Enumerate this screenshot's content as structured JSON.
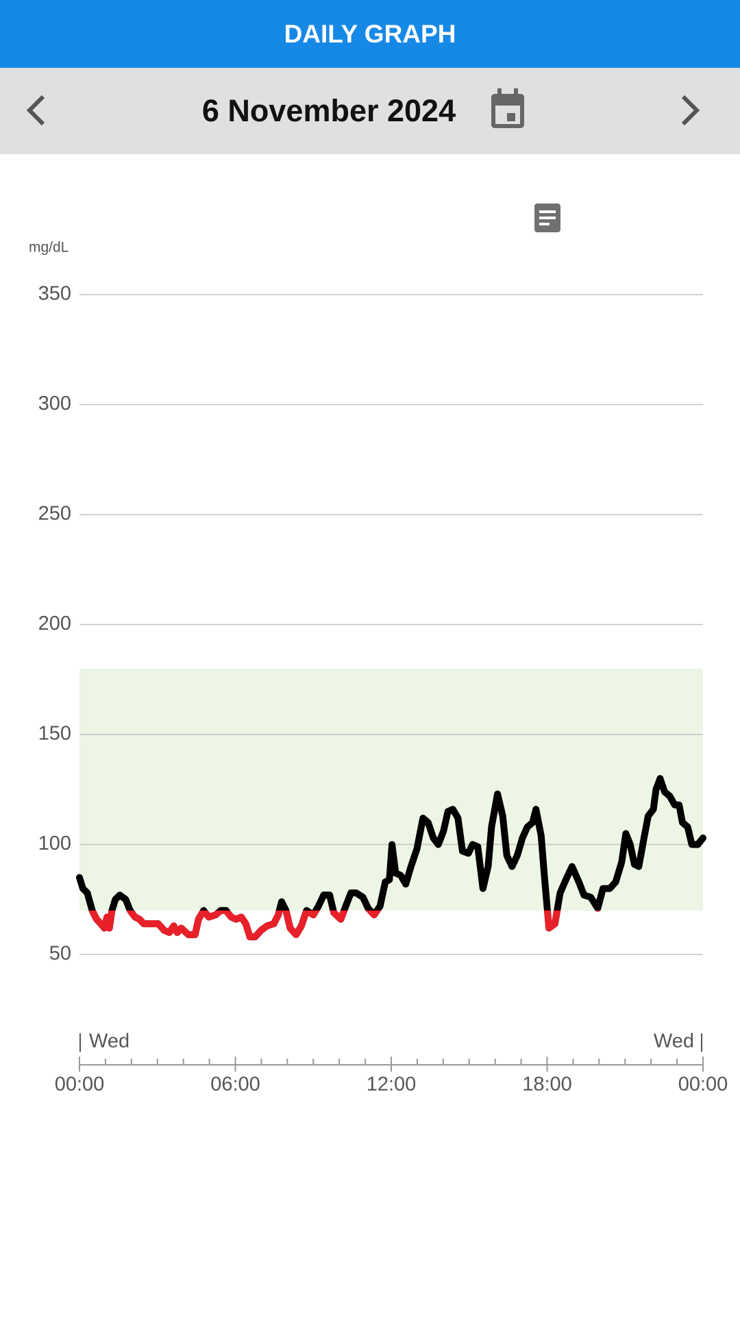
{
  "header": {
    "title": "DAILY GRAPH"
  },
  "date_bar": {
    "date": "6 November 2024"
  },
  "chart_data": {
    "type": "line",
    "y_unit": "mg/dL",
    "day_labels": [
      "Wed",
      "Wed"
    ],
    "x": [
      0,
      0.13,
      0.3,
      0.49,
      0.66,
      0.82,
      0.96,
      1.06,
      1.15,
      1.25,
      1.38,
      1.55,
      1.78,
      1.95,
      2.14,
      2.31,
      2.47,
      2.7,
      3.03,
      3.26,
      3.46,
      3.63,
      3.76,
      3.92,
      4.19,
      4.45,
      4.58,
      4.78,
      4.98,
      5.24,
      5.44,
      5.64,
      5.84,
      6.03,
      6.23,
      6.4,
      6.56,
      6.76,
      6.99,
      7.22,
      7.48,
      7.65,
      7.78,
      7.95,
      8.11,
      8.34,
      8.54,
      8.74,
      9.0,
      9.2,
      9.4,
      9.63,
      9.79,
      10.06,
      10.25,
      10.45,
      10.65,
      10.91,
      11.11,
      11.34,
      11.57,
      11.77,
      11.93,
      12.03,
      12.17,
      12.36,
      12.56,
      12.76,
      12.99,
      13.22,
      13.42,
      13.62,
      13.81,
      14.01,
      14.18,
      14.37,
      14.57,
      14.74,
      14.97,
      15.13,
      15.33,
      15.53,
      15.73,
      15.86,
      16.09,
      16.29,
      16.45,
      16.65,
      16.85,
      17.05,
      17.24,
      17.44,
      17.57,
      17.77,
      17.9,
      18.07,
      18.3,
      18.5,
      18.76,
      18.96,
      19.22,
      19.42,
      19.68,
      19.95,
      20.15,
      20.41,
      20.64,
      20.87,
      21.03,
      21.2,
      21.36,
      21.53,
      21.73,
      21.89,
      22.09,
      22.19,
      22.35,
      22.52,
      22.72,
      22.91,
      23.08,
      23.21,
      23.41,
      23.57,
      23.8,
      24.0
    ],
    "values": [
      85,
      80,
      78,
      70,
      66,
      64,
      62,
      67,
      62,
      70,
      75,
      77,
      75,
      70,
      67,
      66,
      64,
      64,
      64,
      61,
      60,
      63,
      60,
      62,
      59,
      59,
      66,
      70,
      67,
      68,
      70,
      70,
      67,
      66,
      67,
      64,
      58,
      58,
      61,
      63,
      64,
      68,
      74,
      70,
      62,
      59,
      63,
      70,
      68,
      72,
      77,
      77,
      69,
      66,
      72,
      78,
      78,
      76,
      71,
      68,
      72,
      83,
      84,
      100,
      87,
      86,
      82,
      90,
      98,
      112,
      110,
      103,
      100,
      106,
      115,
      116,
      112,
      97,
      96,
      100,
      99,
      80,
      90,
      108,
      123,
      113,
      95,
      90,
      95,
      103,
      108,
      110,
      116,
      104,
      85,
      62,
      64,
      78,
      85,
      90,
      83,
      77,
      76,
      71,
      80,
      80,
      83,
      92,
      105,
      100,
      91,
      90,
      103,
      113,
      116,
      125,
      130,
      124,
      122,
      118,
      118,
      110,
      108,
      100,
      100,
      103
    ],
    "color": "#000000",
    "low_color": "#e8202a",
    "low_threshold": 70,
    "target_range": [
      70,
      180
    ],
    "target_color": "#edf5e5",
    "xlim": [
      0,
      24
    ],
    "xticks": [
      {
        "value": 0,
        "label": "00:00"
      },
      {
        "value": 6,
        "label": "06:00"
      },
      {
        "value": 12,
        "label": "12:00"
      },
      {
        "value": 18,
        "label": "18:00"
      },
      {
        "value": 24,
        "label": "00:00"
      }
    ],
    "minor_xticks": [
      1,
      2,
      3,
      4,
      5,
      7,
      8,
      9,
      10,
      11,
      13,
      14,
      15,
      16,
      17,
      19,
      20,
      21,
      22,
      23
    ],
    "ylim": [
      50,
      350
    ],
    "yticks": [
      50,
      100,
      150,
      200,
      250,
      300,
      350
    ],
    "grid": true
  }
}
